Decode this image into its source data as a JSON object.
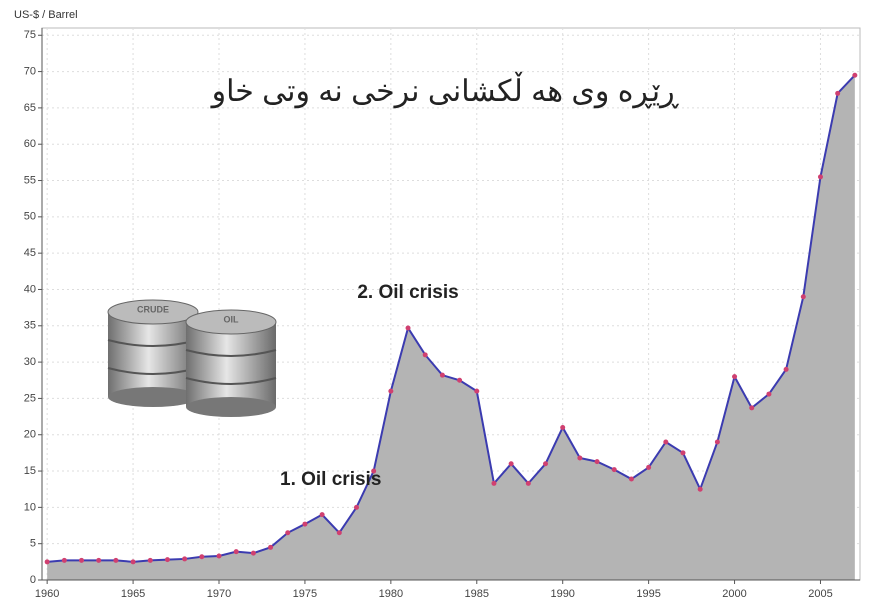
{
  "chart_data": {
    "type": "area",
    "title": "ڕێڕه وی هه ڵکشانی نرخی نه وتی خاو",
    "y_label": "US-$ / Barrel",
    "annotations": [
      {
        "text": "2. Oil crisis",
        "x": 1981,
        "y": 39.5
      },
      {
        "text": "1. Oil crisis",
        "x": 1976.5,
        "y": 13.8
      }
    ],
    "barrel_labels": [
      "CRUDE",
      "OIL"
    ],
    "x": [
      1960,
      1961,
      1962,
      1963,
      1964,
      1965,
      1966,
      1967,
      1968,
      1969,
      1970,
      1971,
      1972,
      1973,
      1974,
      1975,
      1976,
      1977,
      1978,
      1979,
      1980,
      1981,
      1982,
      1983,
      1984,
      1985,
      1986,
      1987,
      1988,
      1989,
      1990,
      1991,
      1992,
      1993,
      1994,
      1995,
      1996,
      1997,
      1998,
      1999,
      2000,
      2001,
      2002,
      2003,
      2004,
      2005,
      2006,
      2007
    ],
    "values": [
      2.5,
      2.7,
      2.7,
      2.7,
      2.7,
      2.5,
      2.7,
      2.8,
      2.9,
      3.2,
      3.3,
      3.9,
      3.7,
      4.5,
      6.5,
      7.7,
      9,
      6.5,
      10,
      15,
      26,
      34.7,
      31,
      28.2,
      27.5,
      26,
      13.3,
      16,
      13.3,
      16,
      21,
      16.8,
      16.3,
      15.2,
      13.9,
      15.5,
      19,
      17.5,
      12.5,
      19,
      28,
      23.7,
      25.6,
      29,
      39,
      55.5,
      67,
      69.5
    ],
    "color": "#3b3bb0",
    "fill_color": "#b4b4b4",
    "marker_color": "#d04070",
    "xlim": [
      1959.7,
      2007.3
    ],
    "ylim": [
      0,
      76
    ],
    "xticks": [
      1960,
      1965,
      1970,
      1975,
      1980,
      1985,
      1990,
      1995,
      2000,
      2005
    ],
    "yticks": [
      0,
      5,
      10,
      15,
      20,
      25,
      30,
      35,
      40,
      45,
      50,
      55,
      60,
      65,
      70,
      75
    ],
    "grid": true
  }
}
